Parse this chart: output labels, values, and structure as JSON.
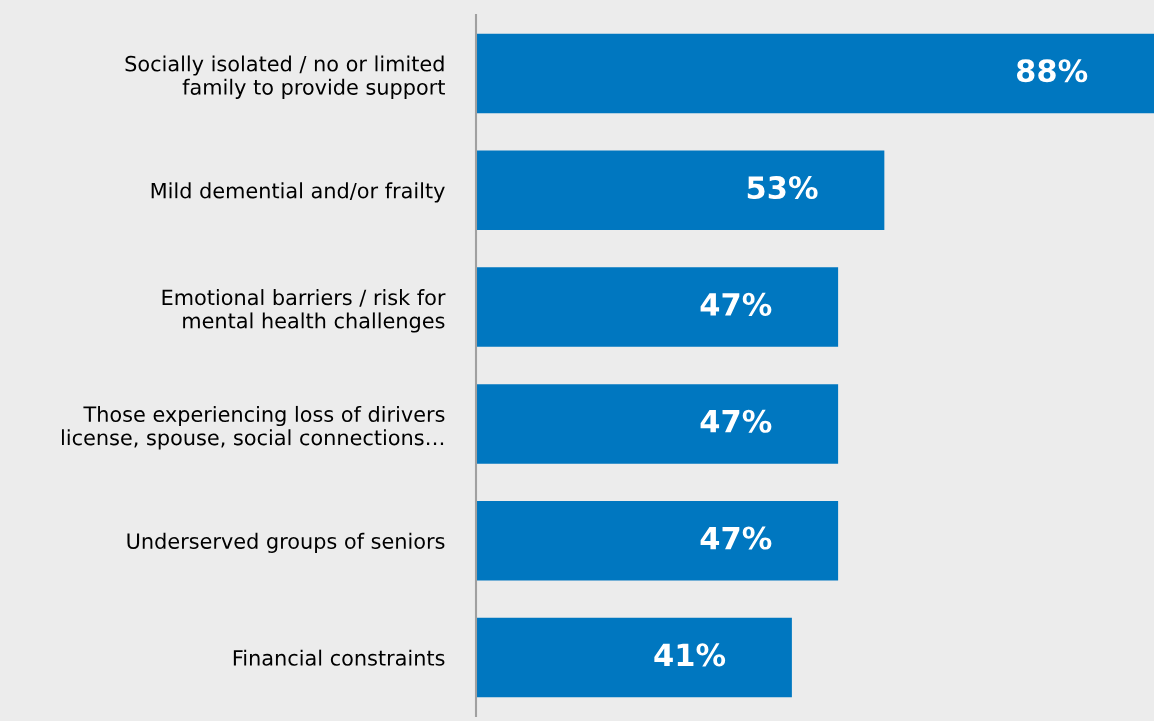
{
  "chart_data": {
    "type": "bar",
    "orientation": "horizontal",
    "categories": [
      "Socially isolated / no or limited\nfamily to provide support",
      "Mild demential and/or frailty",
      "Emotional barriers / risk for\nmental health challenges",
      "Those experiencing loss of dirivers\nlicense, spouse, social connections…",
      "Underserved groups of seniors",
      "Financial constraints"
    ],
    "values": [
      88,
      53,
      47,
      47,
      47,
      41
    ],
    "value_labels": [
      "88%",
      "53%",
      "47%",
      "47%",
      "47%",
      "41%"
    ],
    "color": "#0077c0",
    "xlim": [
      0,
      88
    ],
    "grid": false,
    "legend": false,
    "tick_labels": "y"
  }
}
